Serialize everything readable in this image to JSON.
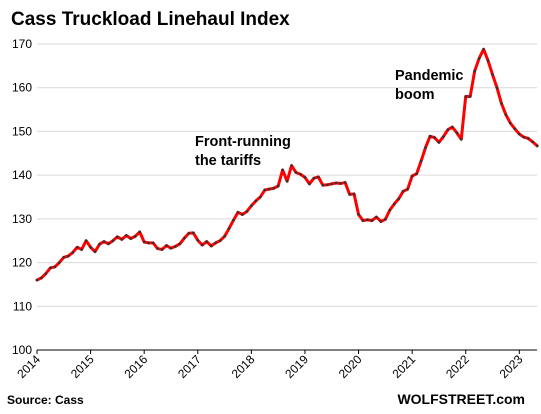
{
  "chart_data": {
    "type": "line",
    "title": "Cass Truckload Linehaul Index",
    "xlabel": "",
    "ylabel": "",
    "ylim": [
      100,
      170
    ],
    "xlim": [
      2014,
      2023.33
    ],
    "y_ticks": [
      "100",
      "110",
      "120",
      "130",
      "140",
      "150",
      "160",
      "170"
    ],
    "x_ticks": [
      "2014",
      "2015",
      "2016",
      "2017",
      "2018",
      "2019",
      "2020",
      "2021",
      "2022",
      "2023"
    ],
    "grid": true,
    "legend": "none",
    "annotations": [
      {
        "lines": [
          "Front-running",
          "the tariffs"
        ]
      },
      {
        "lines": [
          "Pandemic",
          "boom"
        ]
      }
    ],
    "source": "Source: Cass",
    "brand": "WOLFSTREET.com",
    "colors": {
      "line": "#ff0000",
      "markers": "#333333",
      "grid": "#d9d9d9"
    },
    "series": [
      {
        "values": [
          116.0,
          116.5,
          117.5,
          118.8,
          119.0,
          120.0,
          121.2,
          121.5,
          122.3,
          123.5,
          123.0,
          125.0,
          123.5,
          122.5,
          124.2,
          124.8,
          124.3,
          125.0,
          125.9,
          125.3,
          126.2,
          125.5,
          126.0,
          127.0,
          124.7,
          124.5,
          124.5,
          123.2,
          123.0,
          123.9,
          123.3,
          123.7,
          124.3,
          125.6,
          126.7,
          126.8,
          125.1,
          124.0,
          124.8,
          123.8,
          124.5,
          125.0,
          126.0,
          127.8,
          129.7,
          131.5,
          131.0,
          131.7,
          133.0,
          134.1,
          135.0,
          136.6,
          136.8,
          137.0,
          137.5,
          141.2,
          138.6,
          142.2,
          140.6,
          140.2,
          139.5,
          138.0,
          139.3,
          139.6,
          137.7,
          137.8,
          138.0,
          138.2,
          138.1,
          138.3,
          135.6,
          135.7,
          131.0,
          129.6,
          129.8,
          129.6,
          130.4,
          129.4,
          129.9,
          132.0,
          133.4,
          134.6,
          136.3,
          136.8,
          139.8,
          140.3,
          143.2,
          146.3,
          148.9,
          148.6,
          147.5,
          148.8,
          150.4,
          151.0,
          149.7,
          148.2,
          158.0,
          158.0,
          163.8,
          166.7,
          168.8,
          166.2,
          163.0,
          160.0,
          156.4,
          153.8,
          151.9,
          150.6,
          149.4,
          148.7,
          148.4,
          147.6,
          146.7
        ]
      }
    ]
  }
}
